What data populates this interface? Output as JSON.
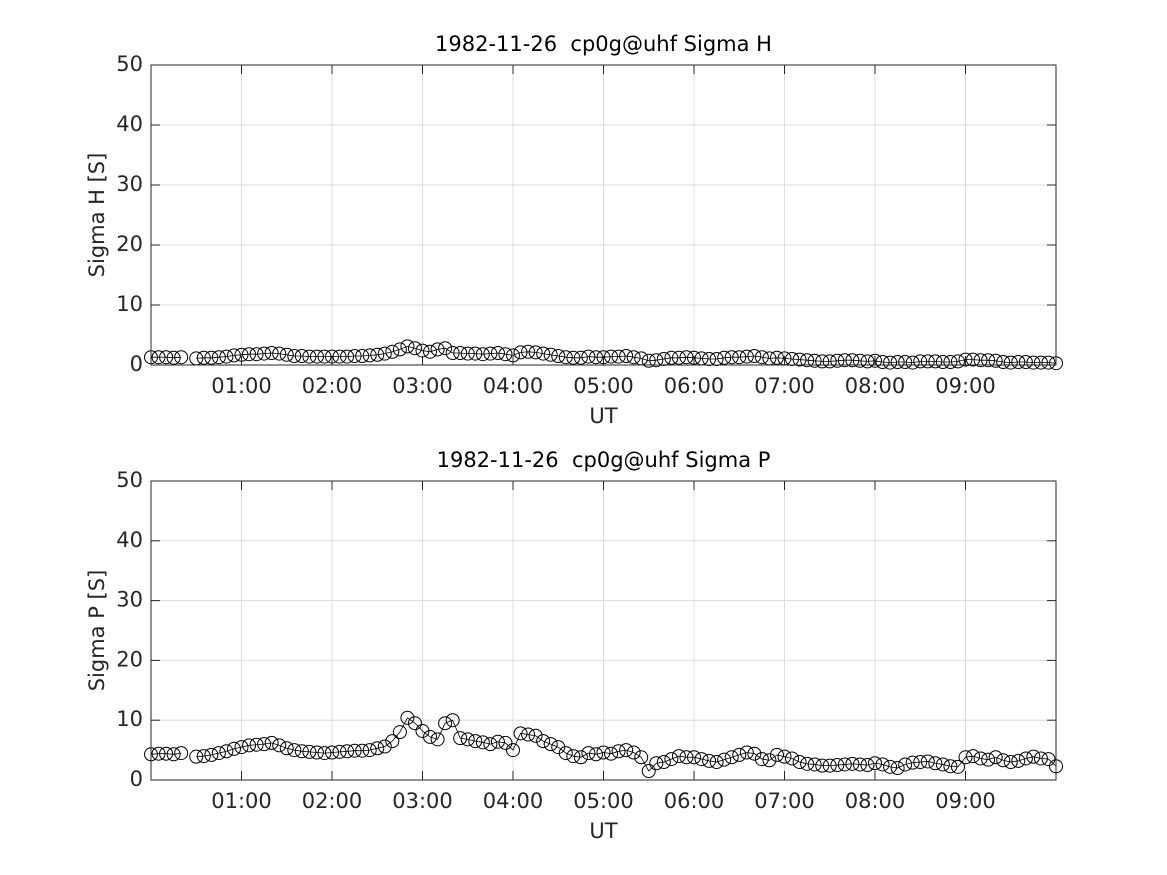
{
  "chart_data": [
    {
      "type": "line",
      "title": "1982-11-26  cp0g@uhf Sigma H",
      "xlabel": "UT",
      "ylabel": "Sigma H [S]",
      "color": "#000000",
      "marker": "o",
      "grid": true,
      "xlim": [
        "00:00",
        "10:00"
      ],
      "xticks": [
        "01:00",
        "02:00",
        "03:00",
        "04:00",
        "05:00",
        "06:00",
        "07:00",
        "08:00",
        "09:00"
      ],
      "ylim": [
        0,
        50
      ],
      "yticks": [
        0,
        10,
        20,
        30,
        40,
        50
      ],
      "x": [
        "00:00",
        "00:05",
        "00:10",
        "00:15",
        "00:20",
        "00:25",
        "00:30",
        "00:35",
        "00:40",
        "00:45",
        "00:50",
        "00:55",
        "01:00",
        "01:05",
        "01:10",
        "01:15",
        "01:20",
        "01:25",
        "01:30",
        "01:35",
        "01:40",
        "01:45",
        "01:50",
        "01:55",
        "02:00",
        "02:05",
        "02:10",
        "02:15",
        "02:20",
        "02:25",
        "02:30",
        "02:35",
        "02:40",
        "02:45",
        "02:50",
        "02:55",
        "03:00",
        "03:05",
        "03:10",
        "03:15",
        "03:20",
        "03:25",
        "03:30",
        "03:35",
        "03:40",
        "03:45",
        "03:50",
        "03:55",
        "04:00",
        "04:05",
        "04:10",
        "04:15",
        "04:20",
        "04:25",
        "04:30",
        "04:35",
        "04:40",
        "04:45",
        "04:50",
        "04:55",
        "05:00",
        "05:05",
        "05:10",
        "05:15",
        "05:20",
        "05:25",
        "05:30",
        "05:35",
        "05:40",
        "05:45",
        "05:50",
        "05:55",
        "06:00",
        "06:05",
        "06:10",
        "06:15",
        "06:20",
        "06:25",
        "06:30",
        "06:35",
        "06:40",
        "06:45",
        "06:50",
        "06:55",
        "07:00",
        "07:05",
        "07:10",
        "07:15",
        "07:20",
        "07:25",
        "07:30",
        "07:35",
        "07:40",
        "07:45",
        "07:50",
        "07:55",
        "08:00",
        "08:05",
        "08:10",
        "08:15",
        "08:20",
        "08:25",
        "08:30",
        "08:35",
        "08:40",
        "08:45",
        "08:50",
        "08:55",
        "09:00",
        "09:05",
        "09:10",
        "09:15",
        "09:20",
        "09:25",
        "09:30",
        "09:35",
        "09:40",
        "09:45",
        "09:50",
        "09:55",
        "10:00"
      ],
      "values": [
        1.3,
        1.3,
        1.3,
        1.2,
        1.3,
        null,
        1.1,
        1.2,
        1.2,
        1.3,
        1.4,
        1.6,
        1.7,
        1.8,
        1.8,
        1.9,
        2.0,
        1.9,
        1.7,
        1.5,
        1.5,
        1.4,
        1.4,
        1.4,
        1.4,
        1.4,
        1.4,
        1.5,
        1.5,
        1.6,
        1.7,
        1.9,
        2.2,
        2.6,
        3.1,
        2.8,
        2.4,
        2.2,
        2.6,
        2.8,
        2.0,
        2.0,
        1.9,
        1.9,
        1.8,
        1.9,
        2.0,
        1.8,
        1.6,
        2.1,
        2.2,
        2.1,
        1.9,
        1.7,
        1.5,
        1.3,
        1.2,
        1.2,
        1.4,
        1.3,
        1.3,
        1.4,
        1.4,
        1.5,
        1.3,
        1.1,
        0.7,
        0.8,
        1.0,
        1.2,
        1.2,
        1.3,
        1.2,
        1.1,
        1.0,
        1.0,
        1.2,
        1.3,
        1.3,
        1.4,
        1.5,
        1.3,
        1.1,
        1.2,
        1.1,
        1.0,
        0.9,
        0.8,
        0.7,
        0.6,
        0.6,
        0.7,
        0.8,
        0.8,
        0.7,
        0.6,
        0.7,
        0.5,
        0.4,
        0.5,
        0.5,
        0.4,
        0.6,
        0.6,
        0.6,
        0.5,
        0.5,
        0.6,
        0.9,
        0.9,
        0.8,
        0.8,
        0.7,
        0.5,
        0.4,
        0.5,
        0.5,
        0.4,
        0.4,
        0.4,
        0.3
      ]
    },
    {
      "type": "line",
      "title": "1982-11-26  cp0g@uhf Sigma P",
      "xlabel": "UT",
      "ylabel": "Sigma P [S]",
      "color": "#000000",
      "marker": "o",
      "grid": true,
      "xlim": [
        "00:00",
        "10:00"
      ],
      "xticks": [
        "01:00",
        "02:00",
        "03:00",
        "04:00",
        "05:00",
        "06:00",
        "07:00",
        "08:00",
        "09:00"
      ],
      "ylim": [
        0,
        50
      ],
      "yticks": [
        0,
        10,
        20,
        30,
        40,
        50
      ],
      "x": [
        "00:00",
        "00:05",
        "00:10",
        "00:15",
        "00:20",
        "00:25",
        "00:30",
        "00:35",
        "00:40",
        "00:45",
        "00:50",
        "00:55",
        "01:00",
        "01:05",
        "01:10",
        "01:15",
        "01:20",
        "01:25",
        "01:30",
        "01:35",
        "01:40",
        "01:45",
        "01:50",
        "01:55",
        "02:00",
        "02:05",
        "02:10",
        "02:15",
        "02:20",
        "02:25",
        "02:30",
        "02:35",
        "02:40",
        "02:45",
        "02:50",
        "02:55",
        "03:00",
        "03:05",
        "03:10",
        "03:15",
        "03:20",
        "03:25",
        "03:30",
        "03:35",
        "03:40",
        "03:45",
        "03:50",
        "03:55",
        "04:00",
        "04:05",
        "04:10",
        "04:15",
        "04:20",
        "04:25",
        "04:30",
        "04:35",
        "04:40",
        "04:45",
        "04:50",
        "04:55",
        "05:00",
        "05:05",
        "05:10",
        "05:15",
        "05:20",
        "05:25",
        "05:30",
        "05:35",
        "05:40",
        "05:45",
        "05:50",
        "05:55",
        "06:00",
        "06:05",
        "06:10",
        "06:15",
        "06:20",
        "06:25",
        "06:30",
        "06:35",
        "06:40",
        "06:45",
        "06:50",
        "06:55",
        "07:00",
        "07:05",
        "07:10",
        "07:15",
        "07:20",
        "07:25",
        "07:30",
        "07:35",
        "07:40",
        "07:45",
        "07:50",
        "07:55",
        "08:00",
        "08:05",
        "08:10",
        "08:15",
        "08:20",
        "08:25",
        "08:30",
        "08:35",
        "08:40",
        "08:45",
        "08:50",
        "08:55",
        "09:00",
        "09:05",
        "09:10",
        "09:15",
        "09:20",
        "09:25",
        "09:30",
        "09:35",
        "09:40",
        "09:45",
        "09:50",
        "09:55",
        "10:00"
      ],
      "values": [
        4.3,
        4.4,
        4.4,
        4.3,
        4.5,
        null,
        3.9,
        4.0,
        4.2,
        4.5,
        4.8,
        5.2,
        5.5,
        5.8,
        5.9,
        6.0,
        6.2,
        5.8,
        5.3,
        5.0,
        4.8,
        4.7,
        4.6,
        4.5,
        4.6,
        4.7,
        4.8,
        4.9,
        4.9,
        5.0,
        5.3,
        5.6,
        6.5,
        8.0,
        10.4,
        9.5,
        8.2,
        7.2,
        6.8,
        9.5,
        10.0,
        7.0,
        6.8,
        6.5,
        6.3,
        6.0,
        6.4,
        6.2,
        5.0,
        7.8,
        7.6,
        7.4,
        6.5,
        6.0,
        5.5,
        4.5,
        4.0,
        3.8,
        4.5,
        4.3,
        4.6,
        4.4,
        4.8,
        5.0,
        4.6,
        3.8,
        1.5,
        2.8,
        3.0,
        3.5,
        4.0,
        3.8,
        3.8,
        3.5,
        3.2,
        3.0,
        3.4,
        3.8,
        4.2,
        4.6,
        4.4,
        3.5,
        3.3,
        4.2,
        3.9,
        3.6,
        3.0,
        2.7,
        2.6,
        2.4,
        2.4,
        2.5,
        2.6,
        2.7,
        2.6,
        2.5,
        2.8,
        2.6,
        2.2,
        2.0,
        2.6,
        2.9,
        3.0,
        3.1,
        2.8,
        2.6,
        2.3,
        2.2,
        3.8,
        4.0,
        3.6,
        3.4,
        3.8,
        3.3,
        3.0,
        3.2,
        3.6,
        3.9,
        3.6,
        3.5,
        2.3
      ]
    }
  ]
}
